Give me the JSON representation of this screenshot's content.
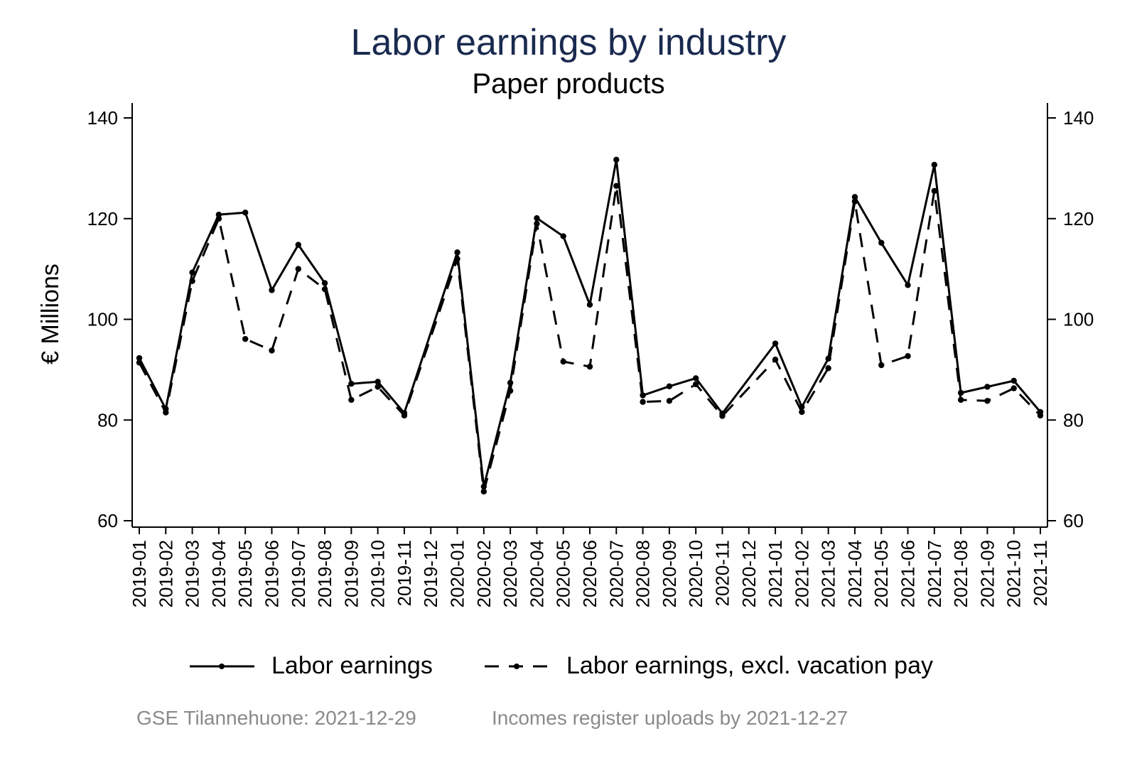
{
  "title": "Labor earnings by industry",
  "subtitle": "Paper products",
  "footer": {
    "left": "GSE Tilannehuone: 2021-12-29",
    "right": "Incomes register uploads by 2021-12-27"
  },
  "colors": {
    "title": "#1a2a4f",
    "series": "#000000",
    "footer": "#8a8a8a"
  },
  "chart_data": {
    "type": "line",
    "ylabel": "€ Millions",
    "xlabel": "",
    "ylim": [
      60,
      140
    ],
    "yticks": [
      60,
      80,
      100,
      120,
      140
    ],
    "secondary_y_axis": true,
    "grid": false,
    "legend_position": "bottom",
    "x": [
      "2019-01",
      "2019-02",
      "2019-03",
      "2019-04",
      "2019-05",
      "2019-06",
      "2019-07",
      "2019-08",
      "2019-09",
      "2019-10",
      "2019-11",
      "2019-12",
      "2020-01",
      "2020-02",
      "2020-03",
      "2020-04",
      "2020-05",
      "2020-06",
      "2020-07",
      "2020-08",
      "2020-09",
      "2020-10",
      "2020-11",
      "2020-12",
      "2021-01",
      "2021-02",
      "2021-03",
      "2021-04",
      "2021-05",
      "2021-06",
      "2021-07",
      "2021-08",
      "2021-09",
      "2021-10",
      "2021-11"
    ],
    "series": [
      {
        "name": "Labor earnings",
        "style": "solid",
        "values": [
          92.3,
          82.2,
          109.3,
          120.8,
          121.2,
          105.8,
          114.8,
          107.2,
          87.2,
          87.6,
          81.4,
          null,
          113.3,
          66.8,
          87.4,
          120.1,
          116.5,
          102.9,
          131.7,
          84.9,
          86.7,
          88.3,
          81.3,
          null,
          95.2,
          82.6,
          92.2,
          124.3,
          115.2,
          106.8,
          130.7,
          85.4,
          86.6,
          87.8,
          81.6
        ]
      },
      {
        "name": "Labor earnings, excl. vacation pay",
        "style": "dashed",
        "values": [
          91.4,
          81.5,
          107.6,
          120.0,
          96.1,
          93.8,
          110.0,
          106.0,
          84.0,
          86.6,
          80.9,
          null,
          112.0,
          65.8,
          85.8,
          119.0,
          91.6,
          90.6,
          126.5,
          83.6,
          83.8,
          87.1,
          80.8,
          null,
          92.0,
          81.6,
          90.3,
          123.4,
          90.9,
          92.7,
          125.5,
          84.0,
          83.8,
          86.3,
          80.9
        ]
      }
    ]
  }
}
